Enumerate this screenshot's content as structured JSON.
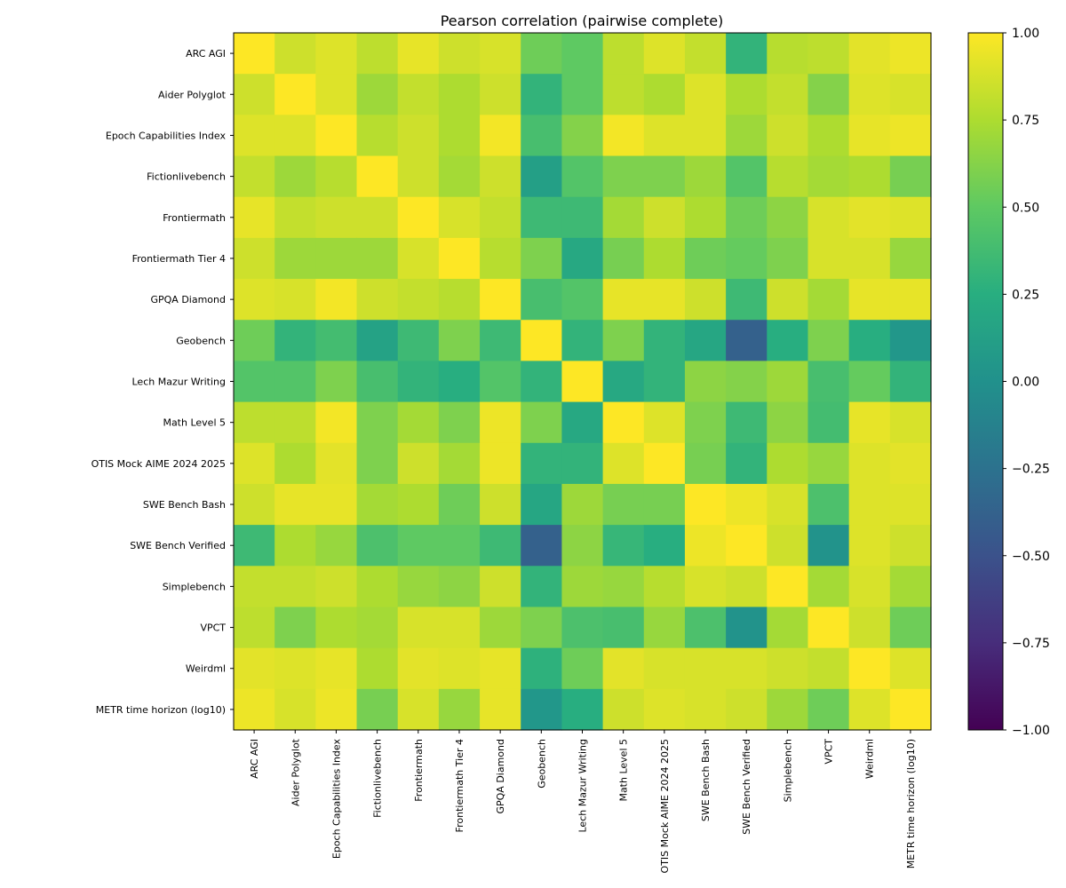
{
  "chart_data": {
    "type": "heatmap",
    "title": "Pearson correlation (pairwise complete)",
    "xlabel": "",
    "ylabel": "",
    "labels": [
      "ARC AGI",
      "Aider Polyglot",
      "Epoch Capabilities Index",
      "Fictionlivebench",
      "Frontiermath",
      "Frontiermath Tier 4",
      "GPQA Diamond",
      "Geobench",
      "Lech Mazur Writing",
      "Math Level 5",
      "OTIS Mock AIME 2024 2025",
      "SWE Bench Bash",
      "SWE Bench Verified",
      "Simplebench",
      "VPCT",
      "Weirdml",
      "METR time horizon (log10)"
    ],
    "values": [
      [
        1.0,
        0.85,
        0.9,
        0.8,
        0.93,
        0.85,
        0.88,
        0.55,
        0.5,
        0.8,
        0.9,
        0.82,
        0.3,
        0.78,
        0.8,
        0.92,
        0.95
      ],
      [
        0.85,
        1.0,
        0.9,
        0.7,
        0.82,
        0.75,
        0.85,
        0.3,
        0.5,
        0.8,
        0.75,
        0.9,
        0.75,
        0.82,
        0.62,
        0.9,
        0.88
      ],
      [
        0.9,
        0.9,
        1.0,
        0.78,
        0.85,
        0.75,
        0.97,
        0.4,
        0.62,
        0.97,
        0.9,
        0.9,
        0.7,
        0.85,
        0.75,
        0.93,
        0.95
      ],
      [
        0.82,
        0.7,
        0.78,
        1.0,
        0.85,
        0.72,
        0.85,
        0.12,
        0.45,
        0.6,
        0.6,
        0.7,
        0.45,
        0.78,
        0.72,
        0.75,
        0.58
      ],
      [
        0.93,
        0.82,
        0.85,
        0.85,
        1.0,
        0.88,
        0.82,
        0.35,
        0.35,
        0.72,
        0.85,
        0.75,
        0.55,
        0.65,
        0.88,
        0.92,
        0.9
      ],
      [
        0.85,
        0.7,
        0.7,
        0.7,
        0.88,
        1.0,
        0.78,
        0.6,
        0.2,
        0.58,
        0.75,
        0.55,
        0.52,
        0.6,
        0.88,
        0.88,
        0.68
      ],
      [
        0.9,
        0.88,
        0.97,
        0.85,
        0.82,
        0.78,
        1.0,
        0.4,
        0.45,
        0.93,
        0.93,
        0.85,
        0.35,
        0.85,
        0.72,
        0.93,
        0.93
      ],
      [
        0.55,
        0.3,
        0.38,
        0.15,
        0.35,
        0.6,
        0.35,
        1.0,
        0.3,
        0.6,
        0.3,
        0.18,
        -0.38,
        0.25,
        0.6,
        0.25,
        0.05
      ],
      [
        0.45,
        0.45,
        0.6,
        0.4,
        0.3,
        0.25,
        0.45,
        0.3,
        1.0,
        0.2,
        0.3,
        0.65,
        0.62,
        0.7,
        0.4,
        0.52,
        0.3
      ],
      [
        0.8,
        0.8,
        0.97,
        0.6,
        0.72,
        0.6,
        0.95,
        0.6,
        0.2,
        1.0,
        0.9,
        0.6,
        0.35,
        0.65,
        0.38,
        0.93,
        0.88
      ],
      [
        0.9,
        0.75,
        0.92,
        0.6,
        0.85,
        0.72,
        0.95,
        0.3,
        0.3,
        0.9,
        1.0,
        0.58,
        0.3,
        0.75,
        0.68,
        0.9,
        0.92
      ],
      [
        0.85,
        0.93,
        0.93,
        0.72,
        0.75,
        0.55,
        0.85,
        0.18,
        0.7,
        0.58,
        0.58,
        1.0,
        0.95,
        0.88,
        0.42,
        0.9,
        0.9
      ],
      [
        0.35,
        0.75,
        0.68,
        0.42,
        0.5,
        0.5,
        0.35,
        -0.38,
        0.65,
        0.32,
        0.25,
        0.95,
        1.0,
        0.85,
        0.02,
        0.9,
        0.85
      ],
      [
        0.82,
        0.82,
        0.85,
        0.75,
        0.68,
        0.65,
        0.85,
        0.3,
        0.7,
        0.68,
        0.78,
        0.88,
        0.85,
        1.0,
        0.72,
        0.88,
        0.72
      ],
      [
        0.8,
        0.6,
        0.75,
        0.72,
        0.88,
        0.88,
        0.7,
        0.6,
        0.42,
        0.4,
        0.68,
        0.42,
        0.02,
        0.72,
        1.0,
        0.85,
        0.55
      ],
      [
        0.92,
        0.9,
        0.93,
        0.75,
        0.92,
        0.9,
        0.93,
        0.28,
        0.55,
        0.92,
        0.88,
        0.88,
        0.88,
        0.85,
        0.82,
        1.0,
        0.9
      ],
      [
        0.95,
        0.88,
        0.95,
        0.58,
        0.88,
        0.68,
        0.93,
        0.05,
        0.25,
        0.85,
        0.9,
        0.88,
        0.85,
        0.7,
        0.55,
        0.9,
        1.0
      ]
    ],
    "vmin": -1.0,
    "vmax": 1.0,
    "colormap": "viridis",
    "colorbar_ticks": [
      {
        "value": 1.0,
        "label": "1.00"
      },
      {
        "value": 0.75,
        "label": "0.75"
      },
      {
        "value": 0.5,
        "label": "0.50"
      },
      {
        "value": 0.25,
        "label": "0.25"
      },
      {
        "value": 0.0,
        "label": "0.00"
      },
      {
        "value": -0.25,
        "label": "−0.25"
      },
      {
        "value": -0.5,
        "label": "−0.50"
      },
      {
        "value": -0.75,
        "label": "−0.75"
      },
      {
        "value": -1.0,
        "label": "−1.00"
      }
    ]
  }
}
